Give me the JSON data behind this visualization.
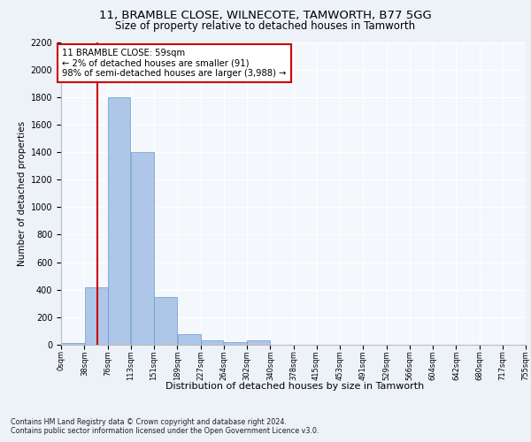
{
  "title1": "11, BRAMBLE CLOSE, WILNECOTE, TAMWORTH, B77 5GG",
  "title2": "Size of property relative to detached houses in Tamworth",
  "xlabel": "Distribution of detached houses by size in Tamworth",
  "ylabel": "Number of detached properties",
  "bar_edges": [
    0,
    38,
    76,
    113,
    151,
    189,
    227,
    264,
    302,
    340,
    378,
    415,
    453,
    491,
    529,
    566,
    604,
    642,
    680,
    717,
    755
  ],
  "bar_heights": [
    15,
    420,
    1800,
    1400,
    350,
    75,
    30,
    20,
    30,
    0,
    0,
    0,
    0,
    0,
    0,
    0,
    0,
    0,
    0,
    0
  ],
  "bar_color": "#aec6e8",
  "bar_edgecolor": "#6699cc",
  "property_size": 59,
  "vline_color": "#cc0000",
  "annotation_line1": "11 BRAMBLE CLOSE: 59sqm",
  "annotation_line2": "← 2% of detached houses are smaller (91)",
  "annotation_line3": "98% of semi-detached houses are larger (3,988) →",
  "annotation_box_edgecolor": "#cc0000",
  "annotation_box_facecolor": "#ffffff",
  "ylim": [
    0,
    2200
  ],
  "yticks": [
    0,
    200,
    400,
    600,
    800,
    1000,
    1200,
    1400,
    1600,
    1800,
    2000,
    2200
  ],
  "bg_color": "#edf2f8",
  "plot_bg_color": "#f4f7fc",
  "grid_color": "#ffffff",
  "footer1": "Contains HM Land Registry data © Crown copyright and database right 2024.",
  "footer2": "Contains public sector information licensed under the Open Government Licence v3.0."
}
